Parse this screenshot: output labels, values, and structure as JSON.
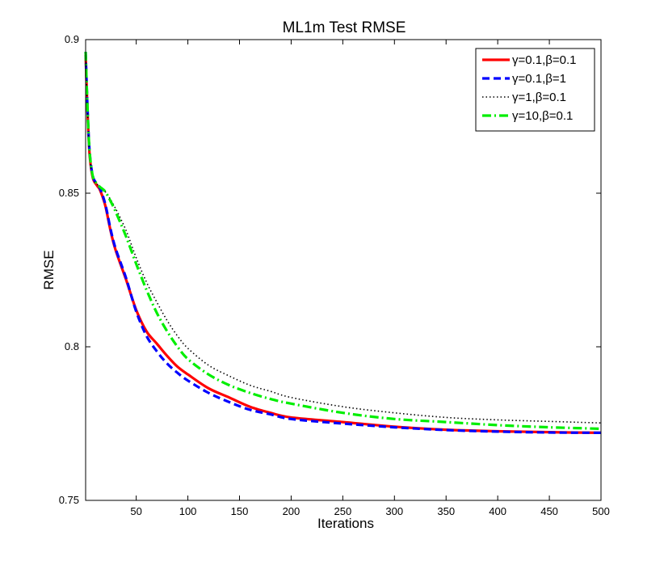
{
  "chart_data": {
    "type": "line",
    "title": "ML1m Test RMSE",
    "xlabel": "Iterations",
    "ylabel": "RMSE",
    "xlim": [
      1,
      500
    ],
    "ylim": [
      0.75,
      0.9
    ],
    "xticks": [
      50,
      100,
      150,
      200,
      250,
      300,
      350,
      400,
      450,
      500
    ],
    "xtick_labels": [
      "50",
      "100",
      "150",
      "200",
      "250",
      "300",
      "350",
      "400",
      "450",
      "500"
    ],
    "yticks": [
      0.75,
      0.8,
      0.85,
      0.9
    ],
    "ytick_labels": [
      "0.75",
      "0.8",
      "0.85",
      "0.9"
    ],
    "grid": false,
    "legend_position": "top-right",
    "series": [
      {
        "name": "γ=0.1,β=0.1",
        "color": "#ff0000",
        "style": "solid",
        "x": [
          1,
          3,
          5,
          8,
          12,
          15,
          20,
          25,
          30,
          40,
          50,
          60,
          70,
          80,
          90,
          100,
          120,
          140,
          160,
          180,
          200,
          250,
          300,
          350,
          400,
          450,
          500
        ],
        "y": [
          0.895,
          0.875,
          0.862,
          0.855,
          0.8525,
          0.851,
          0.846,
          0.838,
          0.8315,
          0.822,
          0.812,
          0.805,
          0.801,
          0.797,
          0.7935,
          0.791,
          0.7865,
          0.7835,
          0.7805,
          0.7785,
          0.777,
          0.7755,
          0.774,
          0.773,
          0.7725,
          0.7722,
          0.772
        ]
      },
      {
        "name": "γ=0.1,β=1",
        "color": "#0000ff",
        "style": "dashed",
        "x": [
          1,
          3,
          5,
          8,
          12,
          15,
          20,
          25,
          30,
          40,
          50,
          60,
          70,
          80,
          90,
          100,
          120,
          140,
          160,
          180,
          200,
          250,
          300,
          350,
          400,
          450,
          500
        ],
        "y": [
          0.896,
          0.876,
          0.863,
          0.8555,
          0.853,
          0.8515,
          0.8465,
          0.8385,
          0.832,
          0.8225,
          0.8115,
          0.8035,
          0.7985,
          0.7945,
          0.7915,
          0.789,
          0.785,
          0.782,
          0.7795,
          0.778,
          0.7765,
          0.775,
          0.7738,
          0.7729,
          0.7724,
          0.7721,
          0.772
        ]
      },
      {
        "name": "γ=1,β=0.1",
        "color": "#000000",
        "style": "dotted",
        "x": [
          1,
          3,
          5,
          8,
          12,
          15,
          20,
          25,
          30,
          40,
          50,
          60,
          70,
          80,
          90,
          100,
          120,
          140,
          160,
          180,
          200,
          250,
          300,
          350,
          400,
          450,
          500
        ],
        "y": [
          0.895,
          0.875,
          0.862,
          0.855,
          0.853,
          0.852,
          0.8505,
          0.848,
          0.845,
          0.838,
          0.829,
          0.821,
          0.8145,
          0.8085,
          0.8035,
          0.7995,
          0.794,
          0.7905,
          0.7875,
          0.7855,
          0.7835,
          0.7805,
          0.7785,
          0.777,
          0.7762,
          0.7757,
          0.7752
        ]
      },
      {
        "name": "γ=10,β=0.1",
        "color": "#00ee00",
        "style": "dashdot",
        "x": [
          1,
          3,
          5,
          8,
          12,
          15,
          20,
          25,
          30,
          40,
          50,
          60,
          70,
          80,
          90,
          100,
          120,
          140,
          160,
          180,
          200,
          250,
          300,
          350,
          400,
          450,
          500
        ],
        "y": [
          0.896,
          0.876,
          0.863,
          0.8555,
          0.853,
          0.852,
          0.8505,
          0.8475,
          0.844,
          0.836,
          0.827,
          0.8185,
          0.811,
          0.805,
          0.8,
          0.796,
          0.791,
          0.7875,
          0.785,
          0.783,
          0.7815,
          0.7785,
          0.7765,
          0.7755,
          0.7745,
          0.7738,
          0.7733
        ]
      }
    ]
  }
}
